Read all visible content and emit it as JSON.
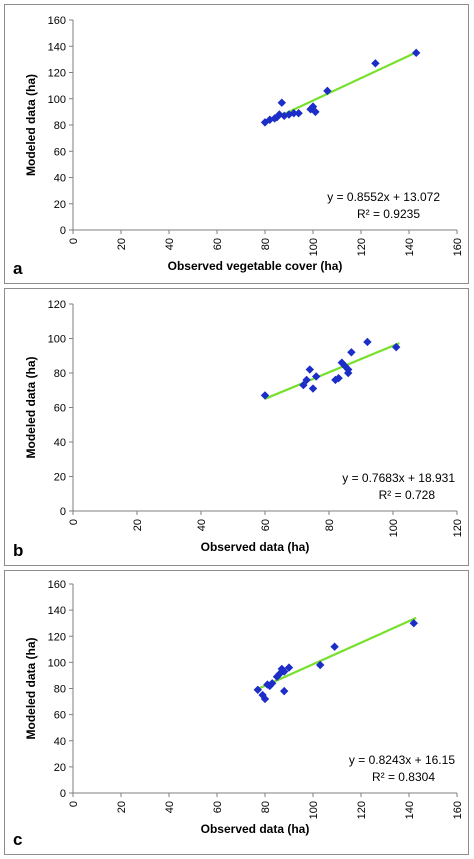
{
  "colors": {
    "points": "#1c2ec7",
    "trend": "#76e02a",
    "axis": "#7f7f7f",
    "text": "#000000"
  },
  "panels": [
    {
      "label": "a"
    },
    {
      "label": "b"
    },
    {
      "label": "c"
    }
  ],
  "chart_data": [
    {
      "type": "scatter",
      "xlabel": "Observed vegetable cover (ha)",
      "ylabel": "Modeled data (ha)",
      "xlim": [
        0,
        160
      ],
      "ylim": [
        0,
        160
      ],
      "xticks": [
        0,
        20,
        40,
        60,
        80,
        100,
        120,
        140,
        160
      ],
      "yticks": [
        0,
        20,
        40,
        60,
        80,
        100,
        120,
        140,
        160
      ],
      "series": [
        {
          "points": [
            [
              80,
              82
            ],
            [
              82,
              84
            ],
            [
              84,
              85
            ],
            [
              85,
              86
            ],
            [
              86,
              88
            ],
            [
              87,
              97
            ],
            [
              88,
              87
            ],
            [
              90,
              88
            ],
            [
              92,
              89
            ],
            [
              94,
              89
            ],
            [
              99,
              92
            ],
            [
              100,
              94
            ],
            [
              101,
              90
            ],
            [
              106,
              106
            ],
            [
              126,
              127
            ],
            [
              143,
              135
            ]
          ]
        }
      ],
      "trendline": {
        "slope": 0.8552,
        "intercept": 13.072,
        "x_range": [
          80,
          143
        ]
      },
      "equation": "y = 0.8552x + 13.072",
      "r2": "R² = 0.9235"
    },
    {
      "type": "scatter",
      "xlabel": "Observed data (ha)",
      "ylabel": "Modeled data (ha)",
      "xlim": [
        0,
        120
      ],
      "ylim": [
        0,
        120
      ],
      "xticks": [
        0,
        20,
        40,
        60,
        80,
        100,
        120
      ],
      "yticks": [
        0,
        20,
        40,
        60,
        80,
        100,
        120
      ],
      "series": [
        {
          "points": [
            [
              60,
              67
            ],
            [
              72,
              73
            ],
            [
              73,
              76
            ],
            [
              74,
              82
            ],
            [
              75,
              71
            ],
            [
              76,
              78
            ],
            [
              82,
              76
            ],
            [
              83,
              77
            ],
            [
              84,
              86
            ],
            [
              85,
              84
            ],
            [
              86,
              80
            ],
            [
              86,
              82
            ],
            [
              87,
              92
            ],
            [
              92,
              98
            ],
            [
              101,
              95
            ]
          ]
        }
      ],
      "trendline": {
        "slope": 0.7683,
        "intercept": 18.931,
        "x_range": [
          60,
          102
        ]
      },
      "equation": "y = 0.7683x + 18.931",
      "r2": "R² = 0.728"
    },
    {
      "type": "scatter",
      "xlabel": "Observed data (ha)",
      "ylabel": "Modeled data (ha)",
      "xlim": [
        0,
        160
      ],
      "ylim": [
        0,
        160
      ],
      "xticks": [
        0,
        20,
        40,
        60,
        80,
        100,
        120,
        140,
        160
      ],
      "yticks": [
        0,
        20,
        40,
        60,
        80,
        100,
        120,
        140,
        160
      ],
      "series": [
        {
          "points": [
            [
              77,
              79
            ],
            [
              79,
              75
            ],
            [
              80,
              72
            ],
            [
              81,
              83
            ],
            [
              82,
              82
            ],
            [
              83,
              84
            ],
            [
              85,
              89
            ],
            [
              86,
              91
            ],
            [
              87,
              95
            ],
            [
              88,
              78
            ],
            [
              88,
              93
            ],
            [
              90,
              96
            ],
            [
              103,
              98
            ],
            [
              109,
              112
            ],
            [
              142,
              130
            ]
          ]
        }
      ],
      "trendline": {
        "slope": 0.8243,
        "intercept": 16.15,
        "x_range": [
          77,
          143
        ]
      },
      "equation": "y = 0.8243x + 16.15",
      "r2": "R² = 0.8304"
    }
  ]
}
